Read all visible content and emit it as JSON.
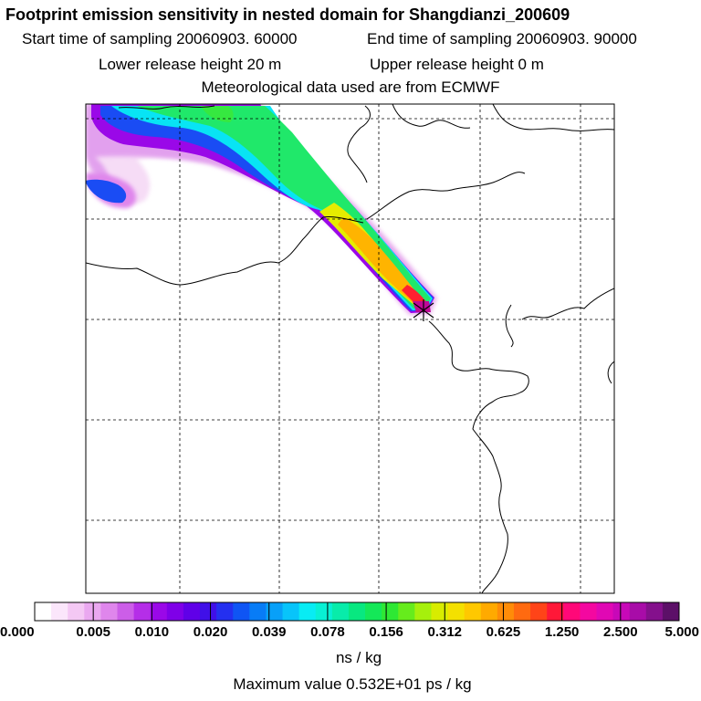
{
  "chart_data": {
    "type": "heatmap",
    "title": "Footprint emission sensitivity in nested domain for Shangdianzi_200609",
    "start_label": "Start time of sampling 20060903. 60000",
    "end_label": "End time of sampling 20060903. 90000",
    "lower_label": "Lower release height   20 m",
    "upper_label": "Upper release height    0 m",
    "met_label": "Meteorological data used are from ECMWF",
    "colorbar": {
      "ticks": [
        "0.000",
        "0.005",
        "0.010",
        "0.020",
        "0.039",
        "0.078",
        "0.156",
        "0.312",
        "0.625",
        "1.250",
        "2.500",
        "5.000"
      ],
      "unit": "ns / kg",
      "colors": [
        "#ffffff",
        "#fbe6fb",
        "#f4c8f4",
        "#eaa8f0",
        "#df86ec",
        "#cc5ee8",
        "#b52ee8",
        "#9a08e8",
        "#7f00e8",
        "#6000e8",
        "#4010e8",
        "#2430f0",
        "#0f55f4",
        "#087cf6",
        "#08a0f8",
        "#08c4fa",
        "#08ecf4",
        "#08f0d4",
        "#08ecaa",
        "#08e880",
        "#14e858",
        "#2ee834",
        "#66ec1c",
        "#a6f00c",
        "#d8ec00",
        "#f4e000",
        "#ffc800",
        "#ffaa00",
        "#ff8c08",
        "#ff6a10",
        "#ff4418",
        "#ff1838",
        "#ff0878",
        "#f408a0",
        "#e008b4",
        "#c808b8",
        "#a80ca8",
        "#84108c",
        "#5c1068"
      ]
    },
    "max_label": "Maximum value  0.532E+01 ps / kg",
    "release_site": "Shangdianzi"
  }
}
